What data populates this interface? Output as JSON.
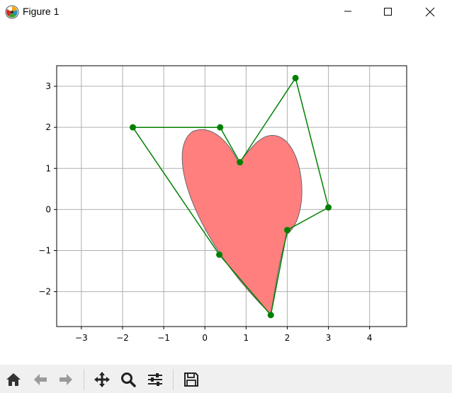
{
  "window": {
    "title": "Figure 1"
  },
  "toolbar": {
    "buttons": [
      "home-icon",
      "back-icon",
      "forward-icon",
      "pan-icon",
      "zoom-icon",
      "configure-subplots-icon",
      "save-icon"
    ]
  },
  "colors": {
    "polygon": "#008000",
    "heart_fill": "#ff7f7f",
    "heart_edge": "#666666",
    "grid": "#b0b0b0",
    "toolbar_bg": "#f0f0f0"
  },
  "chart_data": {
    "type": "line",
    "title": "",
    "xlabel": "",
    "ylabel": "",
    "xlim": [
      -3.6,
      4.9
    ],
    "ylim": [
      -2.85,
      3.5
    ],
    "xticks": [
      -3,
      -2,
      -1,
      0,
      1,
      2,
      3,
      4
    ],
    "yticks": [
      -2,
      -1,
      0,
      1,
      2,
      3
    ],
    "xtick_labels": [
      "−3",
      "−2",
      "−1",
      "0",
      "1",
      "2",
      "3",
      "4"
    ],
    "ytick_labels": [
      "−2",
      "−1",
      "0",
      "1",
      "2",
      "3"
    ],
    "grid": true,
    "series": [
      {
        "marker": "o",
        "closed": true,
        "x": [
          -1.75,
          0.37,
          0.85,
          2.2,
          3.0,
          2.0,
          1.6,
          0.35
        ],
        "y": [
          2.0,
          2.0,
          1.15,
          3.2,
          0.05,
          -0.5,
          -2.57,
          -1.1
        ]
      }
    ],
    "heart_shape": {
      "fill": "#ff7f7f",
      "edge": "#666666",
      "tip": [
        1.6,
        -2.55
      ],
      "notch": [
        0.82,
        1.13
      ],
      "left_lobe_top": [
        -0.3,
        1.9
      ],
      "right_lobe_top": [
        1.7,
        1.8
      ]
    }
  }
}
